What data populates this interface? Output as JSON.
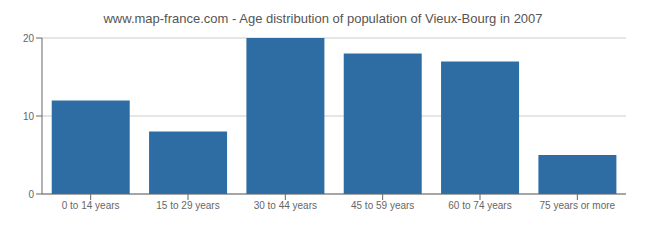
{
  "chart_data": {
    "type": "bar",
    "title": "www.map-france.com - Age distribution of population of Vieux-Bourg in 2007",
    "categories": [
      "0 to 14 years",
      "15 to 29 years",
      "30 to 44 years",
      "45 to 59 years",
      "60 to 74 years",
      "75 years or more"
    ],
    "values": [
      12,
      8,
      20,
      18,
      17,
      5
    ],
    "color": "#2e6da4",
    "ylim": [
      0,
      20
    ],
    "yticks": [
      0,
      10,
      20
    ],
    "grid": true
  }
}
